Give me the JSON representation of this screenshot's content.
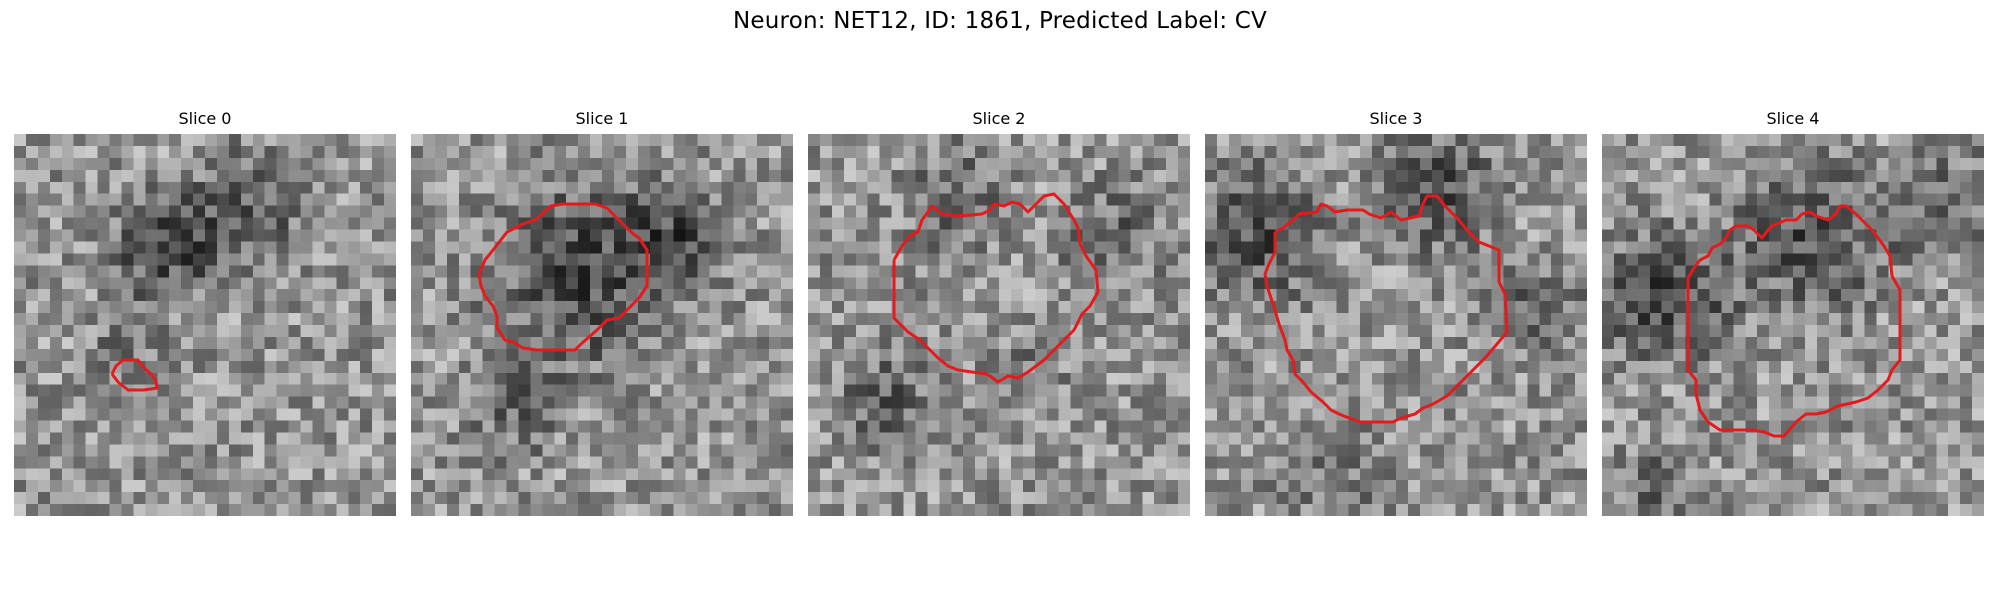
{
  "figure": {
    "title": "Neuron: NET12, ID: 1861, Predicted Label: CV"
  },
  "outline_color": "#e41a1c",
  "panels": [
    {
      "title": "Slice 0"
    },
    {
      "title": "Slice 1"
    },
    {
      "title": "Slice 2"
    },
    {
      "title": "Slice 3"
    },
    {
      "title": "Slice 4"
    }
  ]
}
